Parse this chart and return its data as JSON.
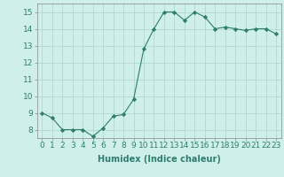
{
  "x": [
    0,
    1,
    2,
    3,
    4,
    5,
    6,
    7,
    8,
    9,
    10,
    11,
    12,
    13,
    14,
    15,
    16,
    17,
    18,
    19,
    20,
    21,
    22,
    23
  ],
  "y": [
    9.0,
    8.7,
    8.0,
    8.0,
    8.0,
    7.6,
    8.1,
    8.8,
    8.9,
    9.8,
    12.8,
    14.0,
    15.0,
    15.0,
    14.5,
    15.0,
    14.7,
    14.0,
    14.1,
    14.0,
    13.9,
    14.0,
    14.0,
    13.7
  ],
  "line_color": "#2e7d6e",
  "marker": "D",
  "marker_size": 2.2,
  "background_color": "#cff0ea",
  "grid_color": "#b0d8d0",
  "xlabel": "Humidex (Indice chaleur)",
  "xlim": [
    -0.5,
    23.5
  ],
  "ylim": [
    7.5,
    15.5
  ],
  "yticks": [
    8,
    9,
    10,
    11,
    12,
    13,
    14,
    15
  ],
  "xticks": [
    0,
    1,
    2,
    3,
    4,
    5,
    6,
    7,
    8,
    9,
    10,
    11,
    12,
    13,
    14,
    15,
    16,
    17,
    18,
    19,
    20,
    21,
    22,
    23
  ],
  "xlabel_fontsize": 7,
  "tick_fontsize": 6.5
}
